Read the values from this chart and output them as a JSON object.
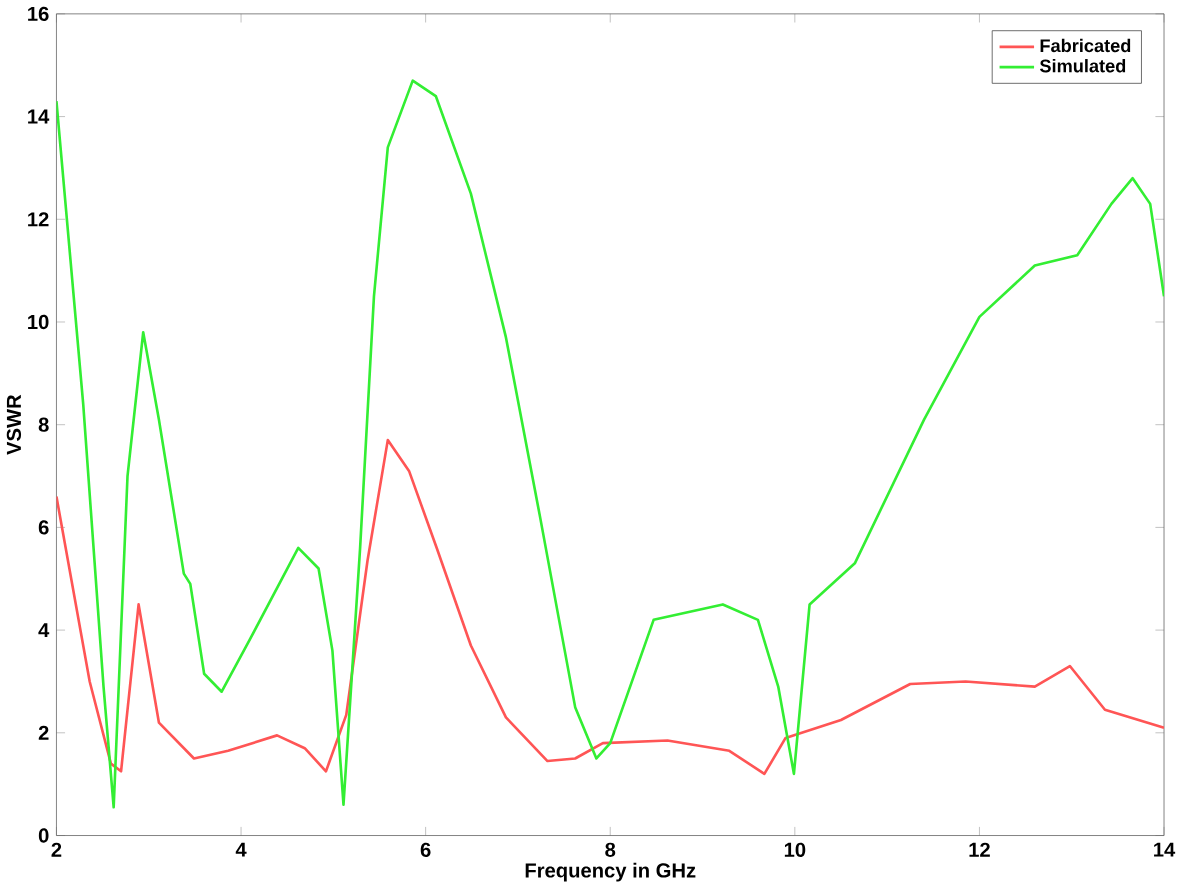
{
  "chart_data": {
    "type": "line",
    "xlabel": "Frequency in GHz",
    "ylabel": "VSWR",
    "xlim": [
      2,
      14
    ],
    "ylim": [
      0,
      16
    ],
    "xticks": [
      2,
      4,
      6,
      8,
      10,
      12,
      14
    ],
    "yticks": [
      0,
      2,
      4,
      6,
      8,
      10,
      12,
      14,
      16
    ],
    "grid": false,
    "legend": "top right",
    "marker": "none",
    "line_style": "solid",
    "series": [
      {
        "name": "Fabricated",
        "color": "#ff5555",
        "x": [
          2,
          2.36,
          2.59,
          2.7,
          2.89,
          3.11,
          3.49,
          3.86,
          4.39,
          4.69,
          4.92,
          5.14,
          5.37,
          5.59,
          5.82,
          6.12,
          6.49,
          6.87,
          7.32,
          7.62,
          7.92,
          8.62,
          9.29,
          9.67,
          9.9,
          10.5,
          11.25,
          11.85,
          12.6,
          12.98,
          13.36,
          14
        ],
        "values": [
          6.6,
          3.0,
          1.4,
          1.25,
          4.5,
          2.2,
          1.5,
          1.65,
          1.95,
          1.7,
          1.25,
          2.35,
          5.35,
          7.7,
          7.1,
          5.6,
          3.7,
          2.3,
          1.45,
          1.5,
          1.8,
          1.85,
          1.65,
          1.2,
          1.9,
          2.25,
          2.95,
          3.0,
          2.9,
          3.3,
          2.45,
          2.1
        ]
      },
      {
        "name": "Simulated",
        "color": "#33ee33",
        "x": [
          2,
          2.29,
          2.51,
          2.62,
          2.77,
          2.94,
          3.11,
          3.38,
          3.45,
          3.6,
          3.79,
          4.09,
          4.62,
          4.84,
          4.99,
          5.11,
          5.29,
          5.44,
          5.59,
          5.86,
          6.11,
          6.49,
          6.87,
          7.24,
          7.62,
          7.85,
          8.0,
          8.47,
          9.22,
          9.6,
          9.82,
          9.99,
          10.16,
          10.65,
          11.4,
          12.0,
          12.6,
          13.06,
          13.43,
          13.66,
          13.85,
          14
        ],
        "values": [
          14.3,
          8.4,
          2.9,
          0.55,
          7.0,
          9.8,
          8.1,
          5.1,
          4.9,
          3.15,
          2.8,
          3.8,
          5.6,
          5.2,
          3.6,
          0.6,
          5.6,
          10.5,
          13.4,
          14.7,
          14.4,
          12.5,
          9.7,
          6.2,
          2.5,
          1.5,
          1.8,
          4.2,
          4.5,
          4.2,
          2.9,
          1.2,
          4.5,
          5.3,
          8.1,
          10.1,
          11.1,
          11.3,
          12.3,
          12.8,
          12.3,
          10.5
        ]
      }
    ]
  }
}
